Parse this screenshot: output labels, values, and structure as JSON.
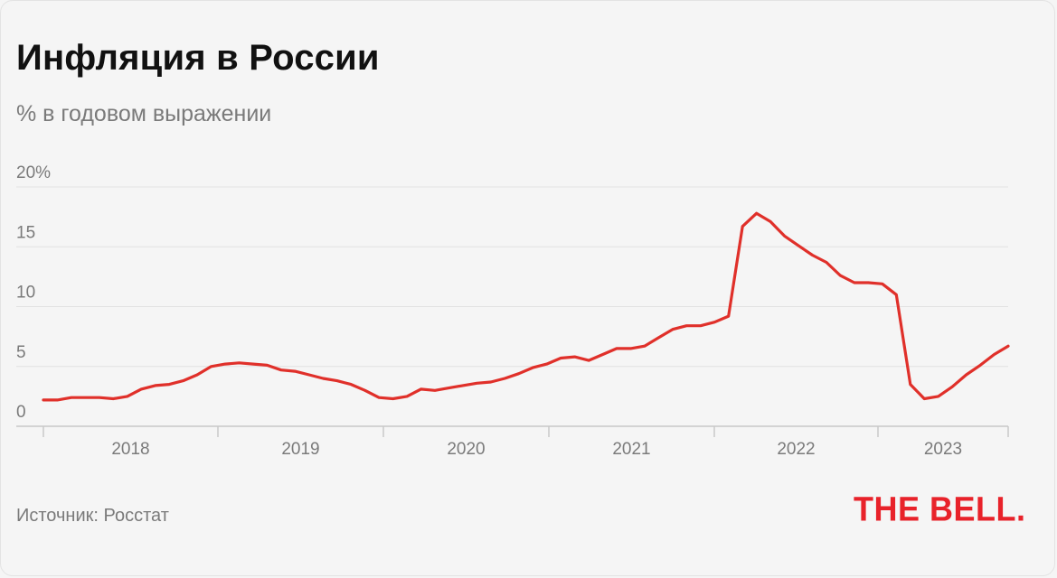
{
  "header": {
    "title": "Инфляция в России",
    "subtitle": "% в годовом выражении"
  },
  "footer": {
    "source": "Источник: Росстат",
    "logo_text": "THE BELL."
  },
  "colors": {
    "line": "#e0302a",
    "grid": "#e2e2e2",
    "axis": "#c8c8c8",
    "tick_text": "#7a7a7a",
    "logo": "#e8222a"
  },
  "chart_data": {
    "type": "line",
    "title": "Инфляция в России",
    "subtitle": "% в годовом выражении",
    "ylim": [
      0,
      20
    ],
    "y_ticks": [
      {
        "value": 0,
        "label": "0"
      },
      {
        "value": 5,
        "label": "5"
      },
      {
        "value": 10,
        "label": "10"
      },
      {
        "value": 15,
        "label": "15"
      },
      {
        "value": 20,
        "label": "20%"
      }
    ],
    "x_labels": [
      "2018",
      "2019",
      "2020",
      "2021",
      "2022",
      "2023"
    ],
    "grid": true,
    "series": [
      {
        "values": [
          2.2,
          2.2,
          2.4,
          2.4,
          2.4,
          2.3,
          2.5,
          3.1,
          3.4,
          3.5,
          3.8,
          4.3,
          5.0,
          5.2,
          5.3,
          5.2,
          5.1,
          4.7,
          4.6,
          4.3,
          4.0,
          3.8,
          3.5,
          3.0,
          2.4,
          2.3,
          2.5,
          3.1,
          3.0,
          3.2,
          3.4,
          3.6,
          3.7,
          4.0,
          4.4,
          4.9,
          5.2,
          5.7,
          5.8,
          5.5,
          6.0,
          6.5,
          6.5,
          6.7,
          7.4,
          8.1,
          8.4,
          8.4,
          8.7,
          9.2,
          16.7,
          17.8,
          17.1,
          15.9,
          15.1,
          14.3,
          13.7,
          12.6,
          12.0,
          12.0,
          11.9,
          11.0,
          3.5,
          2.3,
          2.5,
          3.3,
          4.3,
          5.1,
          6.0,
          6.7
        ]
      }
    ]
  }
}
